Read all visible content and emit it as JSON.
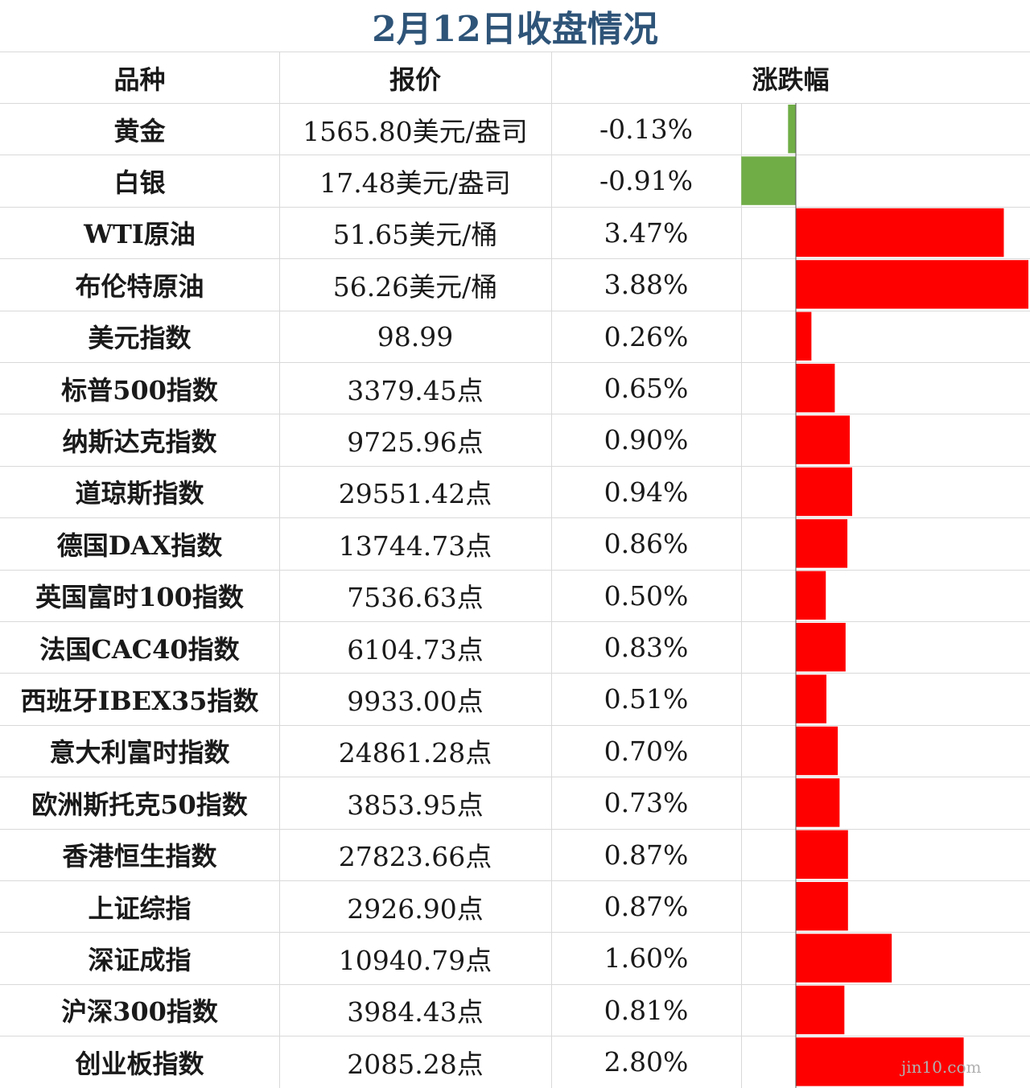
{
  "title": "2月12日收盘情况",
  "headers": {
    "name": "品种",
    "price": "报价",
    "change": "涨跌幅"
  },
  "colors": {
    "title": "#2e5478",
    "up": "#ff0000",
    "down": "#70ad47",
    "grid": "#d9d9d9"
  },
  "watermark": "jin10.com",
  "chart_data": {
    "type": "table",
    "columns": [
      "品种",
      "报价",
      "涨跌幅"
    ],
    "rows": [
      {
        "name": "黄金",
        "price": "1565.80美元/盎司",
        "pct_text": "-0.13%",
        "value": -0.13
      },
      {
        "name": "白银",
        "price": "17.48美元/盎司",
        "pct_text": "-0.91%",
        "value": -0.91
      },
      {
        "name": "WTI原油",
        "price": "51.65美元/桶",
        "pct_text": "3.47%",
        "value": 3.47
      },
      {
        "name": "布伦特原油",
        "price": "56.26美元/桶",
        "pct_text": "3.88%",
        "value": 3.88
      },
      {
        "name": "美元指数",
        "price": "98.99",
        "pct_text": "0.26%",
        "value": 0.26
      },
      {
        "name": "标普500指数",
        "price": "3379.45点",
        "pct_text": "0.65%",
        "value": 0.65
      },
      {
        "name": "纳斯达克指数",
        "price": "9725.96点",
        "pct_text": "0.90%",
        "value": 0.9
      },
      {
        "name": "道琼斯指数",
        "price": "29551.42点",
        "pct_text": "0.94%",
        "value": 0.94
      },
      {
        "name": "德国DAX指数",
        "price": "13744.73点",
        "pct_text": "0.86%",
        "value": 0.86
      },
      {
        "name": "英国富时100指数",
        "price": "7536.63点",
        "pct_text": "0.50%",
        "value": 0.5
      },
      {
        "name": "法国CAC40指数",
        "price": "6104.73点",
        "pct_text": "0.83%",
        "value": 0.83
      },
      {
        "name": "西班牙IBEX35指数",
        "price": "9933.00点",
        "pct_text": "0.51%",
        "value": 0.51
      },
      {
        "name": "意大利富时指数",
        "price": "24861.28点",
        "pct_text": "0.70%",
        "value": 0.7
      },
      {
        "name": "欧洲斯托克50指数",
        "price": "3853.95点",
        "pct_text": "0.73%",
        "value": 0.73
      },
      {
        "name": "香港恒生指数",
        "price": "27823.66点",
        "pct_text": "0.87%",
        "value": 0.87
      },
      {
        "name": "上证综指",
        "price": "2926.90点",
        "pct_text": "0.87%",
        "value": 0.87
      },
      {
        "name": "深证成指",
        "price": "10940.79点",
        "pct_text": "1.60%",
        "value": 1.6
      },
      {
        "name": "沪深300指数",
        "price": "3984.43点",
        "pct_text": "0.81%",
        "value": 0.81
      },
      {
        "name": "创业板指数",
        "price": "2085.28点",
        "pct_text": "2.80%",
        "value": 2.8
      }
    ]
  }
}
